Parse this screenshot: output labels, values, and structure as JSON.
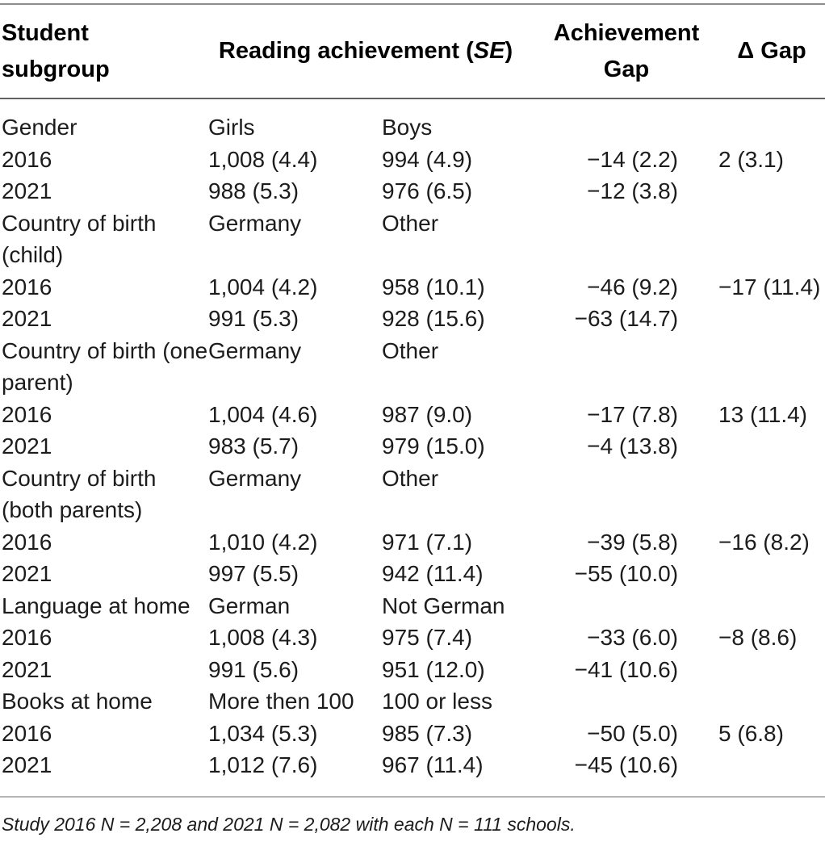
{
  "table": {
    "header": {
      "subgroup": "Student\nsubgroup",
      "reading_prefix": "Reading achievement (",
      "reading_se": "SE",
      "reading_suffix": ")",
      "gap": "Achievement\nGap",
      "delta_gap": "Δ Gap"
    },
    "rows": [
      {
        "c1": "Gender",
        "c2": "Girls",
        "c3": "Boys",
        "c4": "",
        "c5": ""
      },
      {
        "c1": "2016",
        "c2": "1,008 (4.4)",
        "c3": "994 (4.9)",
        "c4": "−14 (2.2)",
        "c5": "2 (3.1)"
      },
      {
        "c1": "2021",
        "c2": "988 (5.3)",
        "c3": "976 (6.5)",
        "c4": "−12 (3.8)",
        "c5": ""
      },
      {
        "c1": "Country of birth (child)",
        "c2": "Germany",
        "c3": "Other",
        "c4": "",
        "c5": ""
      },
      {
        "c1": "2016",
        "c2": "1,004 (4.2)",
        "c3": "958 (10.1)",
        "c4": "−46 (9.2)",
        "c5": "−17 (11.4)"
      },
      {
        "c1": "2021",
        "c2": "991 (5.3)",
        "c3": "928 (15.6)",
        "c4": "−63 (14.7)",
        "c5": ""
      },
      {
        "c1": "Country of birth (one parent)",
        "c2": "Germany",
        "c3": "Other",
        "c4": "",
        "c5": ""
      },
      {
        "c1": "2016",
        "c2": "1,004 (4.6)",
        "c3": "987 (9.0)",
        "c4": "−17 (7.8)",
        "c5": "13 (11.4)"
      },
      {
        "c1": "2021",
        "c2": "983 (5.7)",
        "c3": "979 (15.0)",
        "c4": "−4 (13.8)",
        "c5": ""
      },
      {
        "c1": "Country of birth (both parents)",
        "c2": "Germany",
        "c3": "Other",
        "c4": "",
        "c5": ""
      },
      {
        "c1": "2016",
        "c2": "1,010 (4.2)",
        "c3": "971 (7.1)",
        "c4": "−39 (5.8)",
        "c5": "−16 (8.2)"
      },
      {
        "c1": "2021",
        "c2": "997 (5.5)",
        "c3": "942 (11.4)",
        "c4": "−55 (10.0)",
        "c5": ""
      },
      {
        "c1": "Language at home",
        "c2": "German",
        "c3": "Not German",
        "c4": "",
        "c5": ""
      },
      {
        "c1": "2016",
        "c2": "1,008 (4.3)",
        "c3": "975 (7.4)",
        "c4": "−33 (6.0)",
        "c5": "−8 (8.6)"
      },
      {
        "c1": "2021",
        "c2": "991 (5.6)",
        "c3": "951 (12.0)",
        "c4": "−41 (10.6)",
        "c5": ""
      },
      {
        "c1": "Books at home",
        "c2": "More then 100",
        "c3": "100 or less",
        "c4": "",
        "c5": ""
      },
      {
        "c1": "2016",
        "c2": "1,034 (5.3)",
        "c3": "985 (7.3)",
        "c4": "−50 (5.0)",
        "c5": "5 (6.8)"
      },
      {
        "c1": "2021",
        "c2": "1,012 (7.6)",
        "c3": "967 (11.4)",
        "c4": "−45 (10.6)",
        "c5": ""
      }
    ],
    "footnote": "Study 2016 N = 2,208 and 2021 N = 2,082 with each N = 111 schools.",
    "colors": {
      "background": "#ffffff",
      "text": "#1c1c1c",
      "header_text": "#000000",
      "rule_top": "#8d8d8d",
      "rule_header": "#636363",
      "rule_footer": "#b4b4b4"
    }
  }
}
